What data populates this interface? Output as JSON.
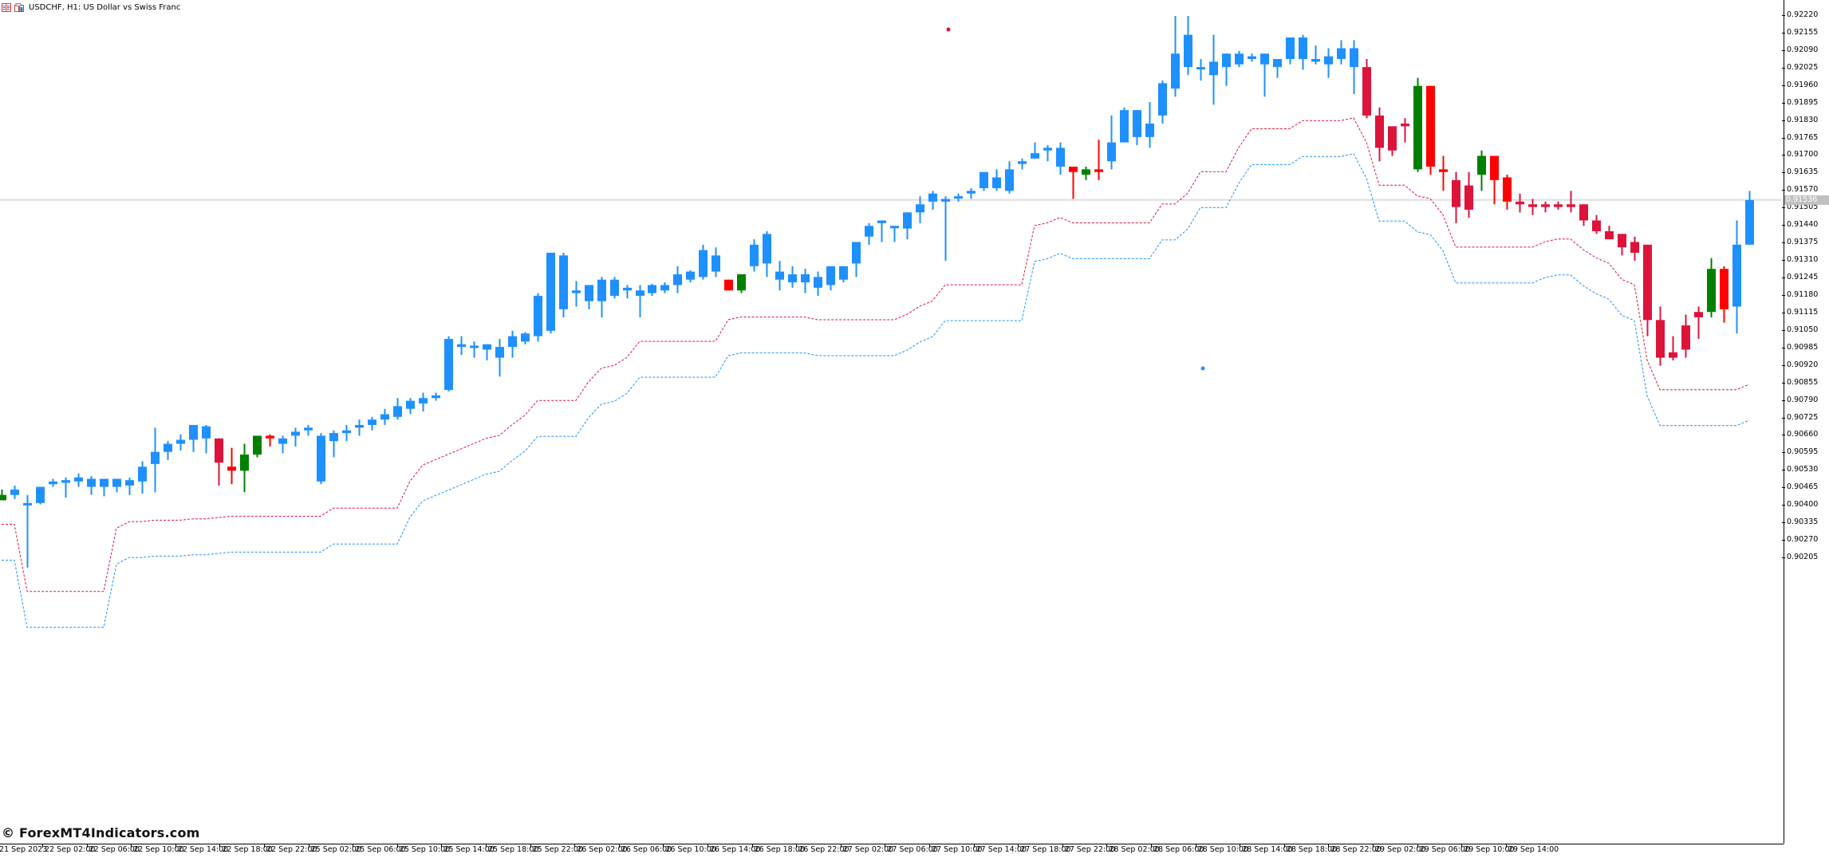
{
  "window": {
    "title": "USDCHF, H1:  US Dollar vs Swiss Franc",
    "icons": [
      "chart-list-icon",
      "chart-window-icon"
    ]
  },
  "watermark": "© ForexMT4Indicators.com",
  "colors": {
    "background": "#ffffff",
    "bull_candle": "#1e90ff",
    "bear_candle": "#dc143c",
    "alt_bull_candle": "#008000",
    "alt_bear_candle": "#ff0000",
    "upper_line": "#dc143c",
    "lower_line": "#1e90ff",
    "current_price_line": "#c0c0c0",
    "axis": "#000000"
  },
  "current_price": "0.91536",
  "chart_data": {
    "type": "candlestick",
    "title": "USDCHF, H1:  US Dollar vs Swiss Franc",
    "symbol": "USDCHF",
    "timeframe": "H1",
    "xlabel": "",
    "ylabel": "",
    "ylim": [
      0.9014,
      0.9228
    ],
    "grid": false,
    "legend": null,
    "current_price": 0.91536,
    "y_ticks": [
      "0.92220",
      "0.92155",
      "0.92090",
      "0.92025",
      "0.91960",
      "0.91895",
      "0.91830",
      "0.91765",
      "0.91700",
      "0.91635",
      "0.91570",
      "0.91505",
      "0.91440",
      "0.91375",
      "0.91310",
      "0.91245",
      "0.91180",
      "0.91115",
      "0.91050",
      "0.90985",
      "0.90920",
      "0.90855",
      "0.90790",
      "0.90725",
      "0.90660",
      "0.90595",
      "0.90530",
      "0.90465",
      "0.90400",
      "0.90335",
      "0.90270",
      "0.90205"
    ],
    "x_ticks": [
      "21 Sep 2023",
      "22 Sep 02:00",
      "22 Sep 06:00",
      "22 Sep 10:00",
      "22 Sep 14:00",
      "22 Sep 18:00",
      "22 Sep 22:00",
      "25 Sep 02:00",
      "25 Sep 06:00",
      "25 Sep 10:00",
      "25 Sep 14:00",
      "25 Sep 18:00",
      "25 Sep 22:00",
      "26 Sep 02:00",
      "26 Sep 06:00",
      "26 Sep 10:00",
      "26 Sep 14:00",
      "26 Sep 18:00",
      "26 Sep 22:00",
      "27 Sep 02:00",
      "27 Sep 06:00",
      "27 Sep 10:00",
      "27 Sep 14:00",
      "27 Sep 18:00",
      "27 Sep 22:00",
      "28 Sep 02:00",
      "28 Sep 06:00",
      "28 Sep 10:00",
      "28 Sep 14:00",
      "28 Sep 18:00",
      "28 Sep 22:00",
      "29 Sep 02:00",
      "29 Sep 06:00",
      "29 Sep 10:00",
      "29 Sep 14:00"
    ],
    "series_note": "Candles: [open, high, low, close] in price units; color key: b=blue bull, r=crimson bear, g=green, R=red",
    "candles": [
      [
        "g",
        0.9044,
        0.9046,
        0.9042,
        0.9042
      ],
      [
        "b",
        0.9044,
        0.90475,
        0.90425,
        0.9046
      ],
      [
        "b",
        0.90405,
        0.9044,
        0.9017,
        0.9041
      ],
      [
        "b",
        0.9041,
        0.9047,
        0.90405,
        0.9047
      ],
      [
        "b",
        0.9048,
        0.905,
        0.9047,
        0.9049
      ],
      [
        "b",
        0.90485,
        0.90505,
        0.9043,
        0.90495
      ],
      [
        "b",
        0.9049,
        0.9052,
        0.9047,
        0.90505
      ],
      [
        "b",
        0.9047,
        0.9051,
        0.9044,
        0.905
      ],
      [
        "b",
        0.9047,
        0.9049,
        0.90435,
        0.905
      ],
      [
        "b",
        0.9047,
        0.90495,
        0.9045,
        0.905
      ],
      [
        "b",
        0.90475,
        0.90505,
        0.9044,
        0.90495
      ],
      [
        "b",
        0.9049,
        0.90565,
        0.90445,
        0.90545
      ],
      [
        "b",
        0.90555,
        0.9069,
        0.9045,
        0.906
      ],
      [
        "b",
        0.906,
        0.9064,
        0.9057,
        0.9063
      ],
      [
        "b",
        0.9063,
        0.90665,
        0.90605,
        0.90645
      ],
      [
        "b",
        0.90645,
        0.907,
        0.906,
        0.907
      ],
      [
        "b",
        0.9065,
        0.907,
        0.90595,
        0.90695
      ],
      [
        "r",
        0.9065,
        0.9065,
        0.90475,
        0.9056
      ],
      [
        "R",
        0.90545,
        0.90615,
        0.9048,
        0.9053
      ],
      [
        "g",
        0.9053,
        0.9063,
        0.9045,
        0.9059
      ],
      [
        "g",
        0.9059,
        0.9066,
        0.9058,
        0.9066
      ],
      [
        "R",
        0.9066,
        0.90665,
        0.9062,
        0.9065
      ],
      [
        "b",
        0.9063,
        0.9066,
        0.90595,
        0.9065
      ],
      [
        "b",
        0.9066,
        0.9069,
        0.9062,
        0.90675
      ],
      [
        "b",
        0.9068,
        0.907,
        0.9066,
        0.9069
      ],
      [
        "b",
        0.9049,
        0.9067,
        0.9048,
        0.9066
      ],
      [
        "b",
        0.9064,
        0.9068,
        0.9058,
        0.9067
      ],
      [
        "b",
        0.9067,
        0.907,
        0.9064,
        0.9068
      ],
      [
        "b",
        0.9069,
        0.9072,
        0.9066,
        0.907
      ],
      [
        "b",
        0.907,
        0.9073,
        0.9068,
        0.9072
      ],
      [
        "b",
        0.9072,
        0.9076,
        0.907,
        0.9074
      ],
      [
        "b",
        0.9073,
        0.908,
        0.9072,
        0.9077
      ],
      [
        "b",
        0.9076,
        0.908,
        0.9074,
        0.9079
      ],
      [
        "b",
        0.9078,
        0.9082,
        0.9075,
        0.908
      ],
      [
        "b",
        0.908,
        0.9082,
        0.9079,
        0.9081
      ],
      [
        "b",
        0.9083,
        0.9103,
        0.90825,
        0.9102
      ],
      [
        "b",
        0.9099,
        0.9103,
        0.9096,
        0.91
      ],
      [
        "b",
        0.9099,
        0.9101,
        0.9095,
        0.90995
      ],
      [
        "b",
        0.9098,
        0.91,
        0.9094,
        0.91
      ],
      [
        "b",
        0.9095,
        0.9102,
        0.9088,
        0.9099
      ],
      [
        "b",
        0.9099,
        0.9105,
        0.9095,
        0.9103
      ],
      [
        "b",
        0.9101,
        0.91045,
        0.91,
        0.9104
      ],
      [
        "b",
        0.9103,
        0.9119,
        0.9101,
        0.9118
      ],
      [
        "b",
        0.9105,
        0.9133,
        0.9104,
        0.9134
      ],
      [
        "b",
        0.9113,
        0.9134,
        0.911,
        0.9133
      ],
      [
        "b",
        0.9119,
        0.91235,
        0.9114,
        0.912
      ],
      [
        "b",
        0.9116,
        0.91215,
        0.9113,
        0.9122
      ],
      [
        "b",
        0.9116,
        0.9125,
        0.911,
        0.9124
      ],
      [
        "b",
        0.9118,
        0.9125,
        0.9117,
        0.9124
      ],
      [
        "b",
        0.912,
        0.9122,
        0.9117,
        0.9121
      ],
      [
        "b",
        0.9118,
        0.9122,
        0.911,
        0.912
      ],
      [
        "b",
        0.9119,
        0.91225,
        0.9118,
        0.9122
      ],
      [
        "b",
        0.912,
        0.9123,
        0.9119,
        0.9122
      ],
      [
        "b",
        0.9122,
        0.9129,
        0.9119,
        0.9126
      ],
      [
        "b",
        0.9124,
        0.91275,
        0.9123,
        0.9127
      ],
      [
        "b",
        0.9125,
        0.9137,
        0.9124,
        0.9135
      ],
      [
        "b",
        0.9127,
        0.9136,
        0.9125,
        0.9133
      ],
      [
        "R",
        0.9124,
        0.9124,
        0.912,
        0.912
      ],
      [
        "g",
        0.912,
        0.9126,
        0.9119,
        0.9126
      ],
      [
        "b",
        0.9129,
        0.9139,
        0.9127,
        0.9137
      ],
      [
        "b",
        0.913,
        0.9142,
        0.9125,
        0.9141
      ],
      [
        "b",
        0.9124,
        0.9131,
        0.912,
        0.9127
      ],
      [
        "b",
        0.9123,
        0.9129,
        0.9121,
        0.9126
      ],
      [
        "b",
        0.9123,
        0.9128,
        0.9119,
        0.9126
      ],
      [
        "b",
        0.9121,
        0.9127,
        0.9118,
        0.9125
      ],
      [
        "b",
        0.9122,
        0.9129,
        0.912,
        0.9129
      ],
      [
        "b",
        0.9124,
        0.9129,
        0.9123,
        0.9129
      ],
      [
        "b",
        0.913,
        0.9134,
        0.9125,
        0.9138
      ],
      [
        "b",
        0.914,
        0.9145,
        0.9137,
        0.9144
      ],
      [
        "b",
        0.9145,
        0.9146,
        0.9138,
        0.9146
      ],
      [
        "b",
        0.9144,
        0.9143,
        0.9138,
        0.9144
      ],
      [
        "b",
        0.9143,
        0.9147,
        0.9139,
        0.9149
      ],
      [
        "b",
        0.9149,
        0.9155,
        0.9145,
        0.9152
      ],
      [
        "b",
        0.9153,
        0.9157,
        0.915,
        0.9156
      ],
      [
        "b",
        0.9153,
        0.9155,
        0.9131,
        0.9154
      ],
      [
        "b",
        0.9155,
        0.9156,
        0.9153,
        0.9155
      ],
      [
        "b",
        0.9156,
        0.9158,
        0.9154,
        0.9157
      ],
      [
        "b",
        0.9158,
        0.9164,
        0.9157,
        0.9164
      ],
      [
        "b",
        0.9158,
        0.9165,
        0.9157,
        0.9162
      ],
      [
        "b",
        0.9157,
        0.9168,
        0.9156,
        0.9165
      ],
      [
        "b",
        0.9168,
        0.9169,
        0.9165,
        0.9167
      ],
      [
        "b",
        0.9171,
        0.9175,
        0.9169,
        0.9169
      ],
      [
        "b",
        0.9172,
        0.9174,
        0.9168,
        0.9173
      ],
      [
        "b",
        0.9166,
        0.9175,
        0.9163,
        0.9173
      ],
      [
        "R",
        0.9166,
        0.9166,
        0.9154,
        0.9164
      ],
      [
        "g",
        0.9163,
        0.9166,
        0.9161,
        0.9165
      ],
      [
        "R",
        0.9165,
        0.9176,
        0.9161,
        0.9164
      ],
      [
        "b",
        0.9168,
        0.9185,
        0.9165,
        0.9175
      ],
      [
        "b",
        0.9175,
        0.9188,
        0.9175,
        0.9187
      ],
      [
        "b",
        0.9177,
        0.9186,
        0.9174,
        0.9187
      ],
      [
        "b",
        0.9177,
        0.919,
        0.9173,
        0.9182
      ],
      [
        "b",
        0.9185,
        0.9198,
        0.9182,
        0.9197
      ],
      [
        "b",
        0.9195,
        0.9222,
        0.9192,
        0.9208
      ],
      [
        "b",
        0.9203,
        0.9222,
        0.92,
        0.9215
      ],
      [
        "b",
        0.9203,
        0.9206,
        0.9198,
        0.9203
      ],
      [
        "b",
        0.92,
        0.9215,
        0.9189,
        0.9205
      ],
      [
        "b",
        0.9203,
        0.9208,
        0.9196,
        0.9208
      ],
      [
        "b",
        0.9204,
        0.9209,
        0.9203,
        0.9208
      ],
      [
        "b",
        0.9207,
        0.9208,
        0.9205,
        0.9206
      ],
      [
        "b",
        0.9204,
        0.9208,
        0.9192,
        0.9208
      ],
      [
        "b",
        0.9203,
        0.9206,
        0.9199,
        0.9206
      ],
      [
        "b",
        0.9206,
        0.9212,
        0.9204,
        0.9214
      ],
      [
        "b",
        0.9206,
        0.9215,
        0.9202,
        0.9214
      ],
      [
        "b",
        0.9205,
        0.9211,
        0.9204,
        0.9206
      ],
      [
        "b",
        0.9204,
        0.921,
        0.9199,
        0.9207
      ],
      [
        "b",
        0.9206,
        0.9213,
        0.9204,
        0.921
      ],
      [
        "b",
        0.9203,
        0.9213,
        0.9193,
        0.921
      ],
      [
        "r",
        0.9203,
        0.9206,
        0.9184,
        0.9185
      ],
      [
        "r",
        0.9185,
        0.9188,
        0.9168,
        0.9173
      ],
      [
        "r",
        0.9181,
        0.918,
        0.917,
        0.9172
      ],
      [
        "r",
        0.9181,
        0.9184,
        0.9175,
        0.9182
      ],
      [
        "g",
        0.9165,
        0.9199,
        0.9164,
        0.9196
      ],
      [
        "R",
        0.9196,
        0.9196,
        0.9163,
        0.9166
      ],
      [
        "R",
        0.9165,
        0.917,
        0.9157,
        0.9164
      ],
      [
        "r",
        0.9161,
        0.9164,
        0.9145,
        0.9151
      ],
      [
        "r",
        0.9159,
        0.9164,
        0.9147,
        0.915
      ],
      [
        "g",
        0.9163,
        0.9172,
        0.9157,
        0.917
      ],
      [
        "R",
        0.917,
        0.917,
        0.9152,
        0.9161
      ],
      [
        "R",
        0.9162,
        0.9163,
        0.915,
        0.9153
      ],
      [
        "r",
        0.9153,
        0.9156,
        0.9149,
        0.9152
      ],
      [
        "r",
        0.9152,
        0.9154,
        0.9148,
        0.9151
      ],
      [
        "r",
        0.9152,
        0.9153,
        0.9149,
        0.9151
      ],
      [
        "r",
        0.9152,
        0.9153,
        0.915,
        0.9151
      ],
      [
        "r",
        0.9152,
        0.9157,
        0.9149,
        0.9151
      ],
      [
        "r",
        0.9152,
        0.9151,
        0.9144,
        0.9146
      ],
      [
        "r",
        0.9146,
        0.9148,
        0.9141,
        0.9142
      ],
      [
        "r",
        0.9142,
        0.9144,
        0.9139,
        0.9139
      ],
      [
        "r",
        0.9141,
        0.9139,
        0.9133,
        0.9136
      ],
      [
        "r",
        0.9138,
        0.914,
        0.9131,
        0.9134
      ],
      [
        "r",
        0.9137,
        0.9137,
        0.9103,
        0.9109
      ],
      [
        "r",
        0.9109,
        0.9114,
        0.9092,
        0.9095
      ],
      [
        "r",
        0.9097,
        0.9103,
        0.9094,
        0.9095
      ],
      [
        "r",
        0.9107,
        0.9111,
        0.9095,
        0.9098
      ],
      [
        "r",
        0.9112,
        0.9114,
        0.9102,
        0.911
      ],
      [
        "g",
        0.9112,
        0.9132,
        0.911,
        0.9128
      ],
      [
        "R",
        0.9128,
        0.9129,
        0.9108,
        0.9113
      ],
      [
        "b",
        0.9114,
        0.9146,
        0.9104,
        0.9137
      ],
      [
        "b",
        0.9137,
        0.9157,
        0.9137,
        0.91536
      ]
    ],
    "indicator_lines": [
      {
        "name": "upper-channel",
        "color": "#dc143c",
        "style": "dashed"
      },
      {
        "name": "lower-channel",
        "color": "#1e90ff",
        "style": "dashed"
      }
    ]
  }
}
